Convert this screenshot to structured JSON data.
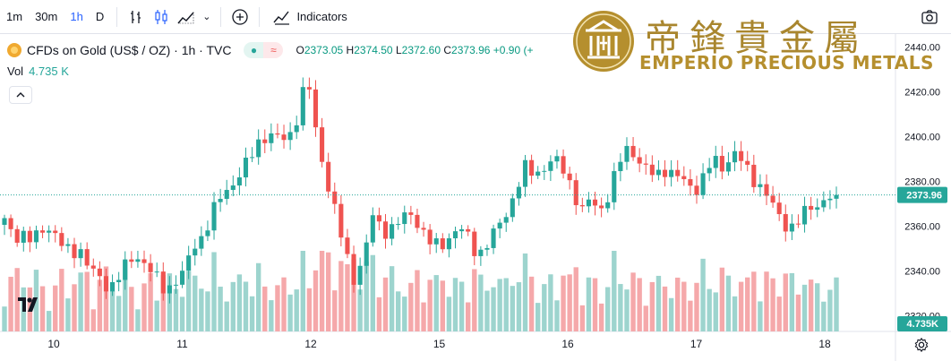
{
  "toolbar": {
    "timeframes": [
      "1m",
      "30m",
      "1h",
      "D"
    ],
    "active_timeframe": "1h",
    "indicators_label": "Indicators",
    "icons": [
      "bar-chart-icon",
      "candles-icon",
      "area-chart-icon",
      "chevron-down-icon",
      "add-compare-icon",
      "indicators-icon",
      "snapshot-icon"
    ]
  },
  "legend": {
    "symbol_title": "CFDs on Gold (US$ / OZ) · 1h · TVC",
    "open_label": "O",
    "open": "2373.05",
    "high_label": "H",
    "high": "2374.50",
    "low_label": "L",
    "low": "2372.60",
    "close_label": "C",
    "close": "2373.96",
    "change": "+0.90 (+",
    "vol_label": "Vol",
    "vol_value": "4.735 K"
  },
  "watermark": {
    "chinese": "帝鋒貴金屬",
    "english": "EMPERIO PRECIOUS METALS"
  },
  "colors": {
    "up": "#26a69a",
    "down": "#ef5350",
    "up_volume": "#9dd4ce",
    "down_volume": "#f5a8aa",
    "price_line": "#26a69a",
    "gold": "#b58f2e"
  },
  "chart_data": {
    "type": "candlestick",
    "timeframe": "1h",
    "y_ticks": [
      "2440.00",
      "2420.00",
      "2400.00",
      "2380.00",
      "2360.00",
      "2340.00",
      "2320.00"
    ],
    "ylim": [
      2313,
      2445
    ],
    "x_ticks": [
      "10",
      "11",
      "12",
      "15",
      "16",
      "17",
      "18"
    ],
    "last_price": "2373.96",
    "last_volume": "4.735K",
    "close_path": [
      2362,
      2355,
      2357,
      2353,
      2358,
      2360,
      2352,
      2347,
      2350,
      2342,
      2336,
      2332,
      2338,
      2343,
      2346,
      2344,
      2337,
      2330,
      2336,
      2340,
      2350,
      2356,
      2367,
      2373,
      2378,
      2385,
      2390,
      2398,
      2402,
      2399,
      2398,
      2410,
      2428,
      2400,
      2382,
      2367,
      2348,
      2336,
      2347,
      2365,
      2357,
      2360,
      2363,
      2365,
      2360,
      2353,
      2350,
      2355,
      2360,
      2355,
      2347,
      2352,
      2358,
      2365,
      2375,
      2386,
      2383,
      2386,
      2390,
      2386,
      2378,
      2366,
      2372,
      2367,
      2375,
      2388,
      2396,
      2390,
      2384,
      2383,
      2386,
      2382,
      2380,
      2376,
      2382,
      2390,
      2386,
      2393,
      2389,
      2382,
      2378,
      2371,
      2364,
      2359,
      2362,
      2368,
      2370,
      2372,
      2373.96
    ],
    "volume_range": [
      0,
      9000
    ]
  }
}
